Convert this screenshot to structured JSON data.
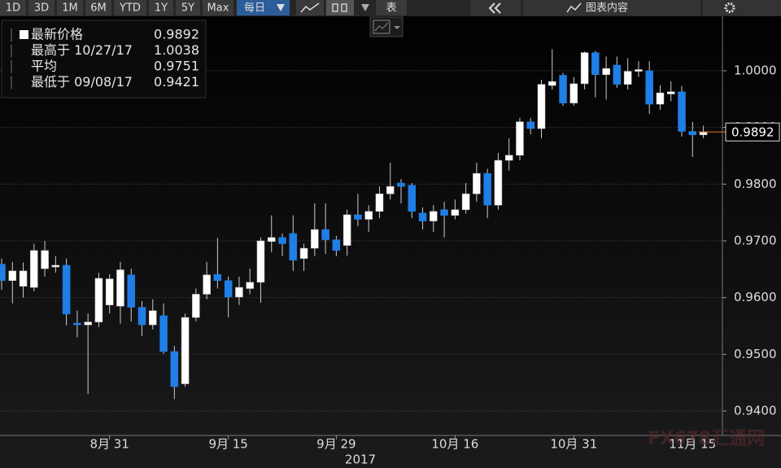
{
  "toolbar": {
    "buttons": [
      "1D",
      "3D",
      "1M",
      "6M",
      "YTD",
      "1Y",
      "5Y",
      "Max",
      "每日"
    ],
    "table": "表",
    "chart_content": "图表内容"
  },
  "watermark": "FX678汇通网",
  "chart_data": {
    "type": "candlestick",
    "categories": [
      null,
      null,
      null,
      null,
      null,
      null,
      null,
      null,
      null,
      null,
      "8月 31",
      null,
      null,
      null,
      null,
      null,
      null,
      null,
      null,
      null,
      null,
      "9月 15",
      null,
      null,
      null,
      null,
      null,
      null,
      null,
      null,
      null,
      "9月 29",
      null,
      null,
      null,
      null,
      null,
      null,
      null,
      null,
      null,
      null,
      "10月 16",
      null,
      null,
      null,
      null,
      null,
      null,
      null,
      null,
      null,
      null,
      "10月 31",
      null,
      null,
      null,
      null,
      null,
      null,
      null,
      null,
      null,
      null,
      "11月 15",
      null
    ],
    "x_year": "2017",
    "open": [
      0.9659,
      0.963,
      0.962,
      0.9618,
      0.9651,
      0.9654,
      0.9657,
      0.9555,
      0.9552,
      0.9557,
      0.9587,
      0.9585,
      0.964,
      0.9583,
      0.9552,
      0.9568,
      0.9505,
      0.9448,
      0.9565,
      0.9606,
      0.9641,
      0.963,
      0.9601,
      0.9616,
      0.9627,
      0.9699,
      0.9706,
      0.9713,
      0.9669,
      0.9687,
      0.972,
      0.9702,
      0.9692,
      0.9746,
      0.9738,
      0.9752,
      0.9783,
      0.9802,
      0.9798,
      0.9749,
      0.9735,
      0.9755,
      0.9745,
      0.9755,
      0.9783,
      0.9819,
      0.9763,
      0.9842,
      0.9851,
      0.991,
      0.9898,
      0.9974,
      0.9992,
      0.9943,
      0.9977,
      1.0032,
      0.9993,
      1.001,
      0.9976,
      0.9999,
      1.0,
      0.9941,
      0.9959,
      0.9963,
      0.9893,
      0.9887
    ],
    "high": [
      0.9669,
      0.9663,
      0.9662,
      0.9695,
      0.97,
      0.9673,
      0.9669,
      0.9577,
      0.9572,
      0.9644,
      0.9641,
      0.9663,
      0.9651,
      0.9594,
      0.9597,
      0.959,
      0.9515,
      0.9572,
      0.9616,
      0.9663,
      0.9705,
      0.9637,
      0.9637,
      0.9651,
      0.9706,
      0.9745,
      0.9713,
      0.9745,
      0.9695,
      0.9766,
      0.9766,
      0.9709,
      0.9755,
      0.9783,
      0.9763,
      0.9796,
      0.9838,
      0.9809,
      0.9802,
      0.9759,
      0.9763,
      0.9769,
      0.9773,
      0.9802,
      0.9838,
      0.9827,
      0.9855,
      0.9881,
      0.9917,
      0.9917,
      0.9984,
      1.0038,
      0.9996,
      0.9989,
      1.0034,
      1.0035,
      1.0025,
      1.0025,
      1.0022,
      1.0017,
      1.0017,
      0.9974,
      0.9981,
      0.9973,
      0.991,
      0.9903
    ],
    "low": [
      0.9614,
      0.959,
      0.96,
      0.9611,
      0.9637,
      0.9644,
      0.9551,
      0.953,
      0.943,
      0.9548,
      0.9572,
      0.9554,
      0.9558,
      0.9532,
      0.9544,
      0.9501,
      0.9421,
      0.9443,
      0.9558,
      0.9597,
      0.9616,
      0.9565,
      0.9587,
      0.9606,
      0.9591,
      0.968,
      0.9673,
      0.9647,
      0.9647,
      0.9673,
      0.9677,
      0.9673,
      0.9674,
      0.9726,
      0.9716,
      0.974,
      0.9773,
      0.9766,
      0.974,
      0.972,
      0.9716,
      0.9706,
      0.9738,
      0.9748,
      0.9769,
      0.974,
      0.9755,
      0.9824,
      0.9842,
      0.9888,
      0.9881,
      0.9967,
      0.9938,
      0.9938,
      0.9967,
      0.9953,
      0.9949,
      0.997,
      0.9967,
      0.9989,
      0.9924,
      0.9931,
      0.9946,
      0.9884,
      0.9848,
      0.9881
    ],
    "close": [
      0.963,
      0.9647,
      0.9647,
      0.9683,
      0.9683,
      0.9657,
      0.9571,
      0.9552,
      0.9557,
      0.9634,
      0.9633,
      0.9649,
      0.9583,
      0.9552,
      0.9577,
      0.9505,
      0.9443,
      0.9565,
      0.9606,
      0.964,
      0.963,
      0.9601,
      0.9618,
      0.9627,
      0.97,
      0.9706,
      0.9695,
      0.9666,
      0.9687,
      0.972,
      0.9702,
      0.9683,
      0.9746,
      0.9738,
      0.9752,
      0.9783,
      0.9796,
      0.9796,
      0.9752,
      0.9735,
      0.9752,
      0.9745,
      0.9755,
      0.9783,
      0.9819,
      0.9763,
      0.9842,
      0.9851,
      0.991,
      0.9898,
      0.9976,
      0.9981,
      0.9943,
      0.9977,
      1.0032,
      0.9993,
      1.0004,
      0.9976,
      0.9999,
      1.0002,
      0.9941,
      0.9961,
      0.9963,
      0.9893,
      0.9887,
      0.9892
    ],
    "up_color": "#ffffff",
    "down_color": "#1f7fe6",
    "ylim": [
      0.9357,
      1.0096
    ],
    "yticks": [
      {
        "value": 0.94,
        "label": "0.9400"
      },
      {
        "value": 0.95,
        "label": "0.9500"
      },
      {
        "value": 0.96,
        "label": "0.9600"
      },
      {
        "value": 0.97,
        "label": "0.9700"
      },
      {
        "value": 0.98,
        "label": "0.9800"
      },
      {
        "value": 0.99,
        "label": "0.9900"
      },
      {
        "value": 1.0,
        "label": "1.0000"
      }
    ],
    "grid": true,
    "last_price": 0.9892,
    "last_price_color": "#e07a2a",
    "legend": [
      {
        "label": "最新价格",
        "value": 0.9892
      },
      {
        "label": "最高于 10/27/17",
        "value": 1.0038
      },
      {
        "label": "平均",
        "value": 0.9751
      },
      {
        "label": "最低于 09/08/17",
        "value": 0.9421
      }
    ]
  }
}
